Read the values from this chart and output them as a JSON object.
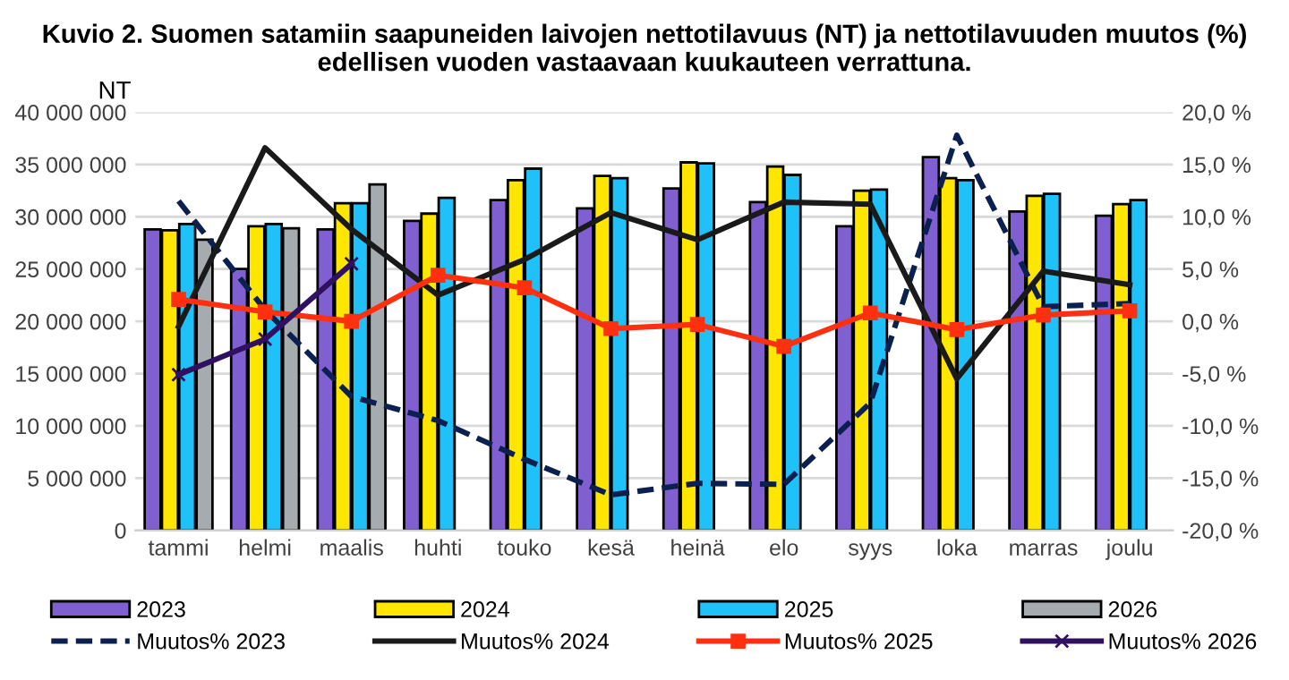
{
  "chart_data": {
    "type": "bar",
    "title": "Kuvio 2. Suomen satamiin saapuneiden laivojen nettotilavuus (NT) ja nettotilavuuden muutos (%) edellisen vuoden vastaavaan kuukauteen verrattuna.",
    "ylabel": "NT",
    "categories": [
      "tammi",
      "helmi",
      "maalis",
      "huhti",
      "touko",
      "kesä",
      "heinä",
      "elo",
      "syys",
      "loka",
      "marras",
      "joulu"
    ],
    "series": [
      {
        "name": "2023",
        "color": "#8060d0",
        "values": [
          28800000,
          25000000,
          28800000,
          29600000,
          31600000,
          30800000,
          32700000,
          31400000,
          29100000,
          35700000,
          30500000,
          30100000
        ]
      },
      {
        "name": "2024",
        "color": "#ffe600",
        "values": [
          28700000,
          29100000,
          31300000,
          30300000,
          33500000,
          33900000,
          35200000,
          34800000,
          32500000,
          33700000,
          32000000,
          31200000
        ]
      },
      {
        "name": "2025",
        "color": "#20c0f8",
        "values": [
          29300000,
          29300000,
          31300000,
          31800000,
          34600000,
          33700000,
          35100000,
          34000000,
          32600000,
          33500000,
          32200000,
          31600000
        ]
      },
      {
        "name": "2026",
        "color": "#a6abb0",
        "values": [
          27800000,
          28900000,
          33100000,
          null,
          null,
          null,
          null,
          null,
          null,
          null,
          null,
          null
        ]
      },
      {
        "name": "Muutos% 2023",
        "type": "line",
        "axis": "y2",
        "color": "#0c2050",
        "line_style": "dashed",
        "marker": "none",
        "values": [
          11.5,
          1.1,
          -7.2,
          -9.5,
          -13.2,
          -16.6,
          -15.5,
          -15.6,
          -7.8,
          17.8,
          1.4,
          1.7
        ]
      },
      {
        "name": "Muutos% 2024",
        "type": "line",
        "axis": "y2",
        "color": "#1a1a1a",
        "line_style": "solid",
        "marker": "none",
        "values": [
          -0.5,
          16.6,
          8.8,
          2.5,
          5.9,
          10.4,
          7.8,
          11.4,
          11.2,
          -5.5,
          4.8,
          3.5
        ]
      },
      {
        "name": "Muutos% 2025",
        "type": "line",
        "axis": "y2",
        "color": "#ff3010",
        "line_style": "solid",
        "marker": "square",
        "values": [
          2.1,
          0.9,
          0.0,
          4.4,
          3.2,
          -0.7,
          -0.3,
          -2.4,
          0.8,
          -0.8,
          0.6,
          1.0
        ]
      },
      {
        "name": "Muutos% 2026",
        "type": "line",
        "axis": "y2",
        "color": "#301060",
        "line_style": "solid",
        "marker": "cross",
        "values": [
          -5.1,
          -1.7,
          5.5,
          null,
          null,
          null,
          null,
          null,
          null,
          null,
          null,
          null
        ]
      }
    ],
    "ylim": [
      0,
      40000000
    ],
    "yticks": [
      {
        "value": 0,
        "label": "0"
      },
      {
        "value": 5000000,
        "label": "5 000 000"
      },
      {
        "value": 10000000,
        "label": "10 000 000"
      },
      {
        "value": 15000000,
        "label": "15 000 000"
      },
      {
        "value": 20000000,
        "label": "20 000 000"
      },
      {
        "value": 25000000,
        "label": "25 000 000"
      },
      {
        "value": 30000000,
        "label": "30 000 000"
      },
      {
        "value": 35000000,
        "label": "35 000 000"
      },
      {
        "value": 40000000,
        "label": "40 000 000"
      }
    ],
    "y2lim": [
      -20,
      20
    ],
    "y2ticks": [
      {
        "value": -20,
        "label": "-20,0 %"
      },
      {
        "value": -15,
        "label": "-15,0 %"
      },
      {
        "value": -10,
        "label": "-10,0 %"
      },
      {
        "value": -5,
        "label": "-5,0 %"
      },
      {
        "value": 0,
        "label": "0,0 %"
      },
      {
        "value": 5,
        "label": "5,0 %"
      },
      {
        "value": 10,
        "label": "10,0 %"
      },
      {
        "value": 15,
        "label": "15,0 %"
      },
      {
        "value": 20,
        "label": "20,0 %"
      }
    ],
    "grid": "y",
    "legend": "bottom"
  }
}
